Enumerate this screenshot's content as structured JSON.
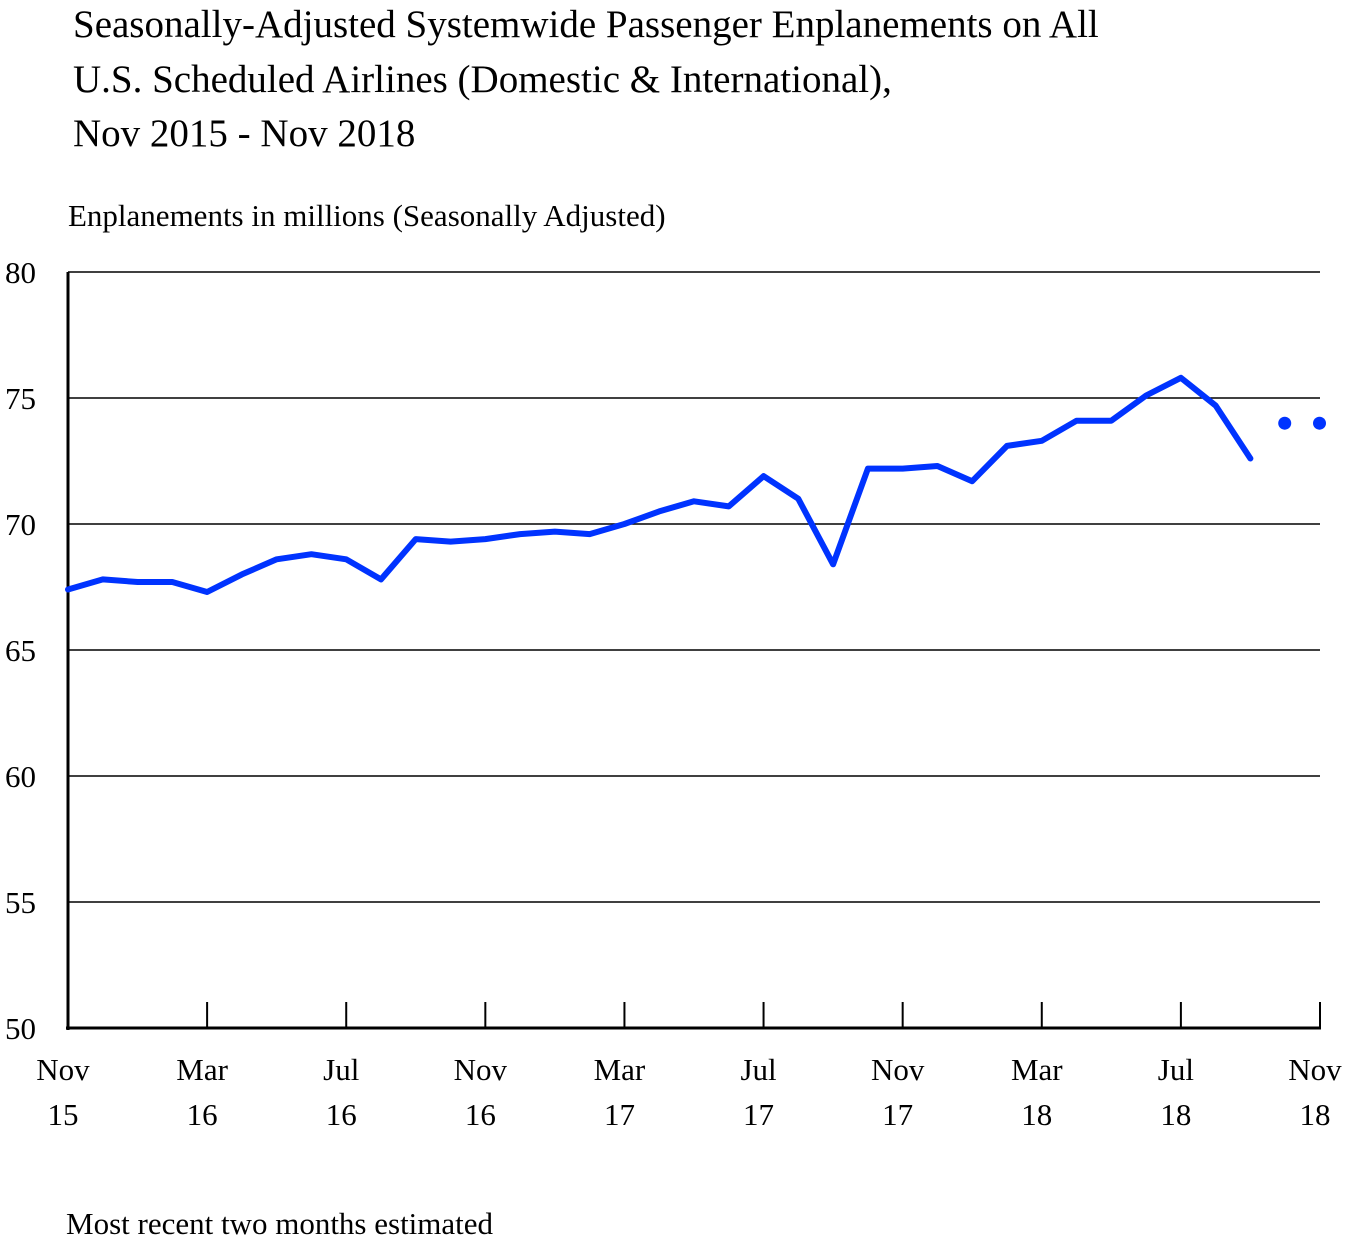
{
  "chart_data": {
    "type": "line",
    "title_lines": [
      "Seasonally-Adjusted Systemwide Passenger Enplanements on All",
      "U.S. Scheduled Airlines (Domestic & International),",
      "Nov 2015 - Nov 2018"
    ],
    "ylabel": "Enplanements in millions (Seasonally Adjusted)",
    "footnote": "Most recent two months estimated",
    "ylim": [
      50,
      80
    ],
    "yticks": [
      "50",
      "55",
      "60",
      "65",
      "70",
      "75",
      "80"
    ],
    "xticks": [
      {
        "index": 0,
        "line1": "Nov",
        "line2": "15"
      },
      {
        "index": 4,
        "line1": "Mar",
        "line2": "16"
      },
      {
        "index": 8,
        "line1": "Jul",
        "line2": "16"
      },
      {
        "index": 12,
        "line1": "Nov",
        "line2": "16"
      },
      {
        "index": 16,
        "line1": "Mar",
        "line2": "17"
      },
      {
        "index": 20,
        "line1": "Jul",
        "line2": "17"
      },
      {
        "index": 24,
        "line1": "Nov",
        "line2": "17"
      },
      {
        "index": 28,
        "line1": "Mar",
        "line2": "18"
      },
      {
        "index": 32,
        "line1": "Jul",
        "line2": "18"
      },
      {
        "index": 36,
        "line1": "Nov",
        "line2": "18"
      }
    ],
    "grid": true,
    "color": "#0033ff",
    "series": [
      {
        "name": "Enplanements",
        "style": "line",
        "months": [
          "Nov 15",
          "Dec 15",
          "Jan 16",
          "Feb 16",
          "Mar 16",
          "Apr 16",
          "May 16",
          "Jun 16",
          "Jul 16",
          "Aug 16",
          "Sep 16",
          "Oct 16",
          "Nov 16",
          "Dec 16",
          "Jan 17",
          "Feb 17",
          "Mar 17",
          "Apr 17",
          "May 17",
          "Jun 17",
          "Jul 17",
          "Aug 17",
          "Sep 17",
          "Oct 17",
          "Nov 17",
          "Dec 17",
          "Jan 18",
          "Feb 18",
          "Mar 18",
          "Apr 18",
          "May 18",
          "Jun 18",
          "Jul 18",
          "Aug 18",
          "Sep 18"
        ],
        "values": [
          67.4,
          67.8,
          67.7,
          67.7,
          67.3,
          68.0,
          68.6,
          68.8,
          68.6,
          67.8,
          69.4,
          69.3,
          69.4,
          69.6,
          69.7,
          69.6,
          70.0,
          70.5,
          70.9,
          70.7,
          71.9,
          71.0,
          68.4,
          72.2,
          72.2,
          72.3,
          71.7,
          73.1,
          73.3,
          74.1,
          74.1,
          75.1,
          75.8,
          74.7,
          72.6
        ]
      },
      {
        "name": "Estimated",
        "style": "dots",
        "months": [
          "Oct 18",
          "Nov 18"
        ],
        "values": [
          74.0,
          74.0
        ]
      }
    ]
  }
}
